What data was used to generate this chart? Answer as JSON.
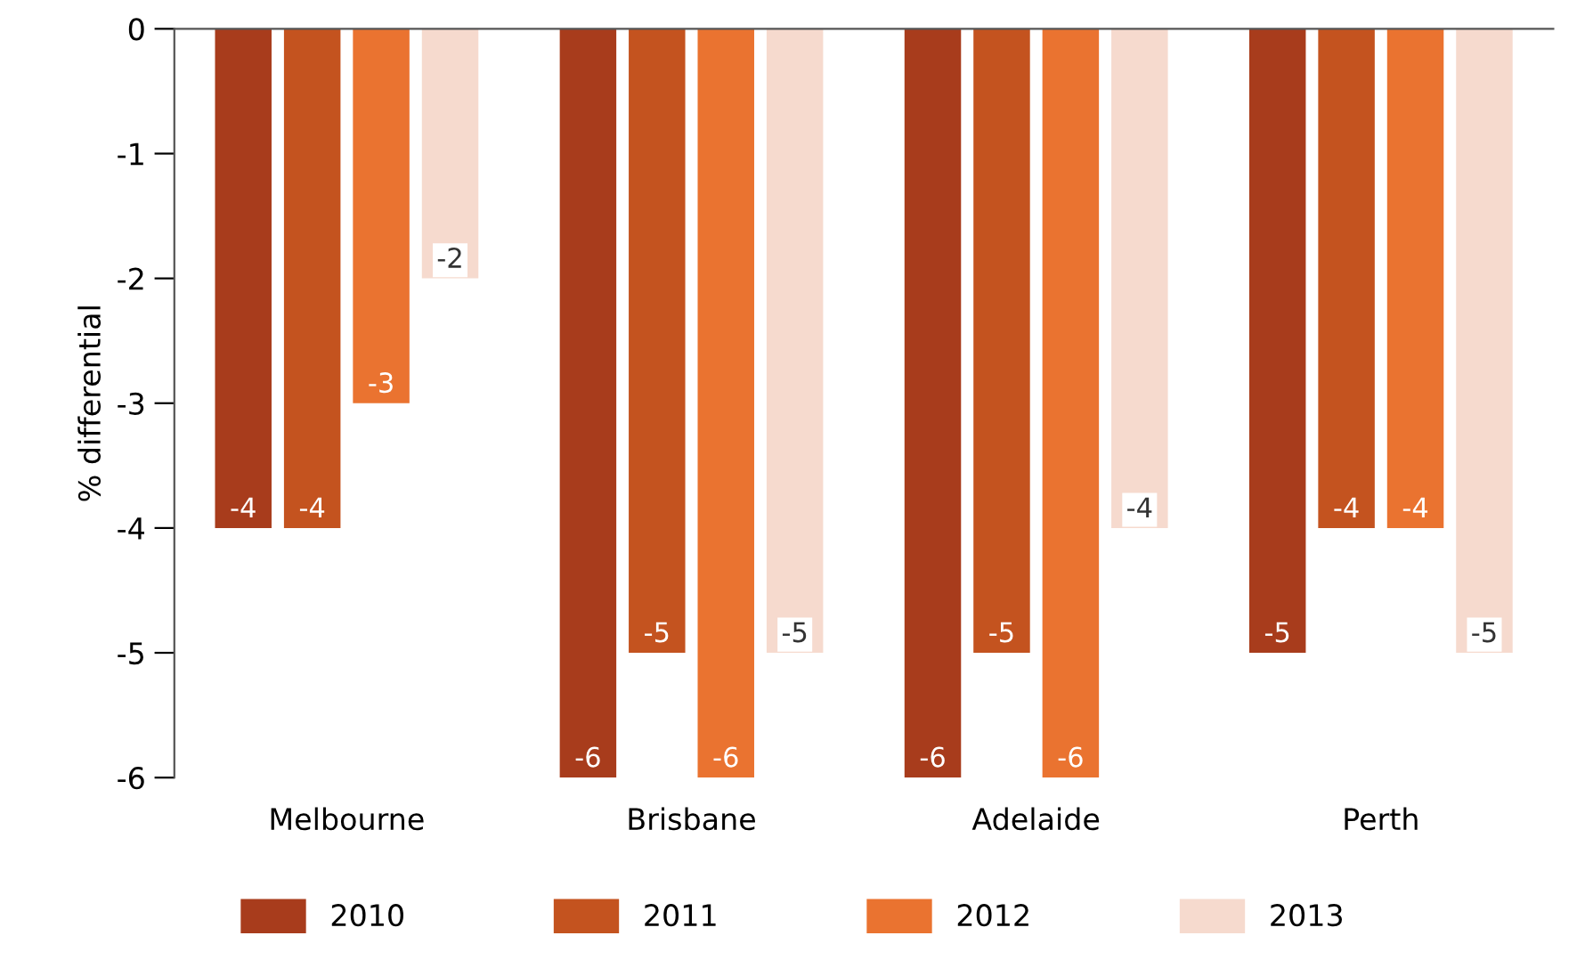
{
  "chart_data": {
    "type": "bar",
    "ylabel": "% differential",
    "categories": [
      "Melbourne",
      "Brisbane",
      "Adelaide",
      "Perth"
    ],
    "series": [
      {
        "name": "2010",
        "color": "#a83c1c",
        "values": [
          -4,
          -6,
          -6,
          -5
        ]
      },
      {
        "name": "2011",
        "color": "#c4531f",
        "values": [
          -4,
          -5,
          -5,
          -4
        ]
      },
      {
        "name": "2012",
        "color": "#ea7330",
        "values": [
          -3,
          -6,
          -6,
          -4
        ]
      },
      {
        "name": "2013",
        "color": "#f6dace",
        "values": [
          -2,
          -5,
          -4,
          -5
        ]
      }
    ],
    "ylim": [
      -6,
      0
    ],
    "yticks": [
      -6,
      -5,
      -4,
      -3,
      -2,
      -1,
      0
    ],
    "grid": false,
    "legend": "bottom",
    "data_labels": true
  }
}
